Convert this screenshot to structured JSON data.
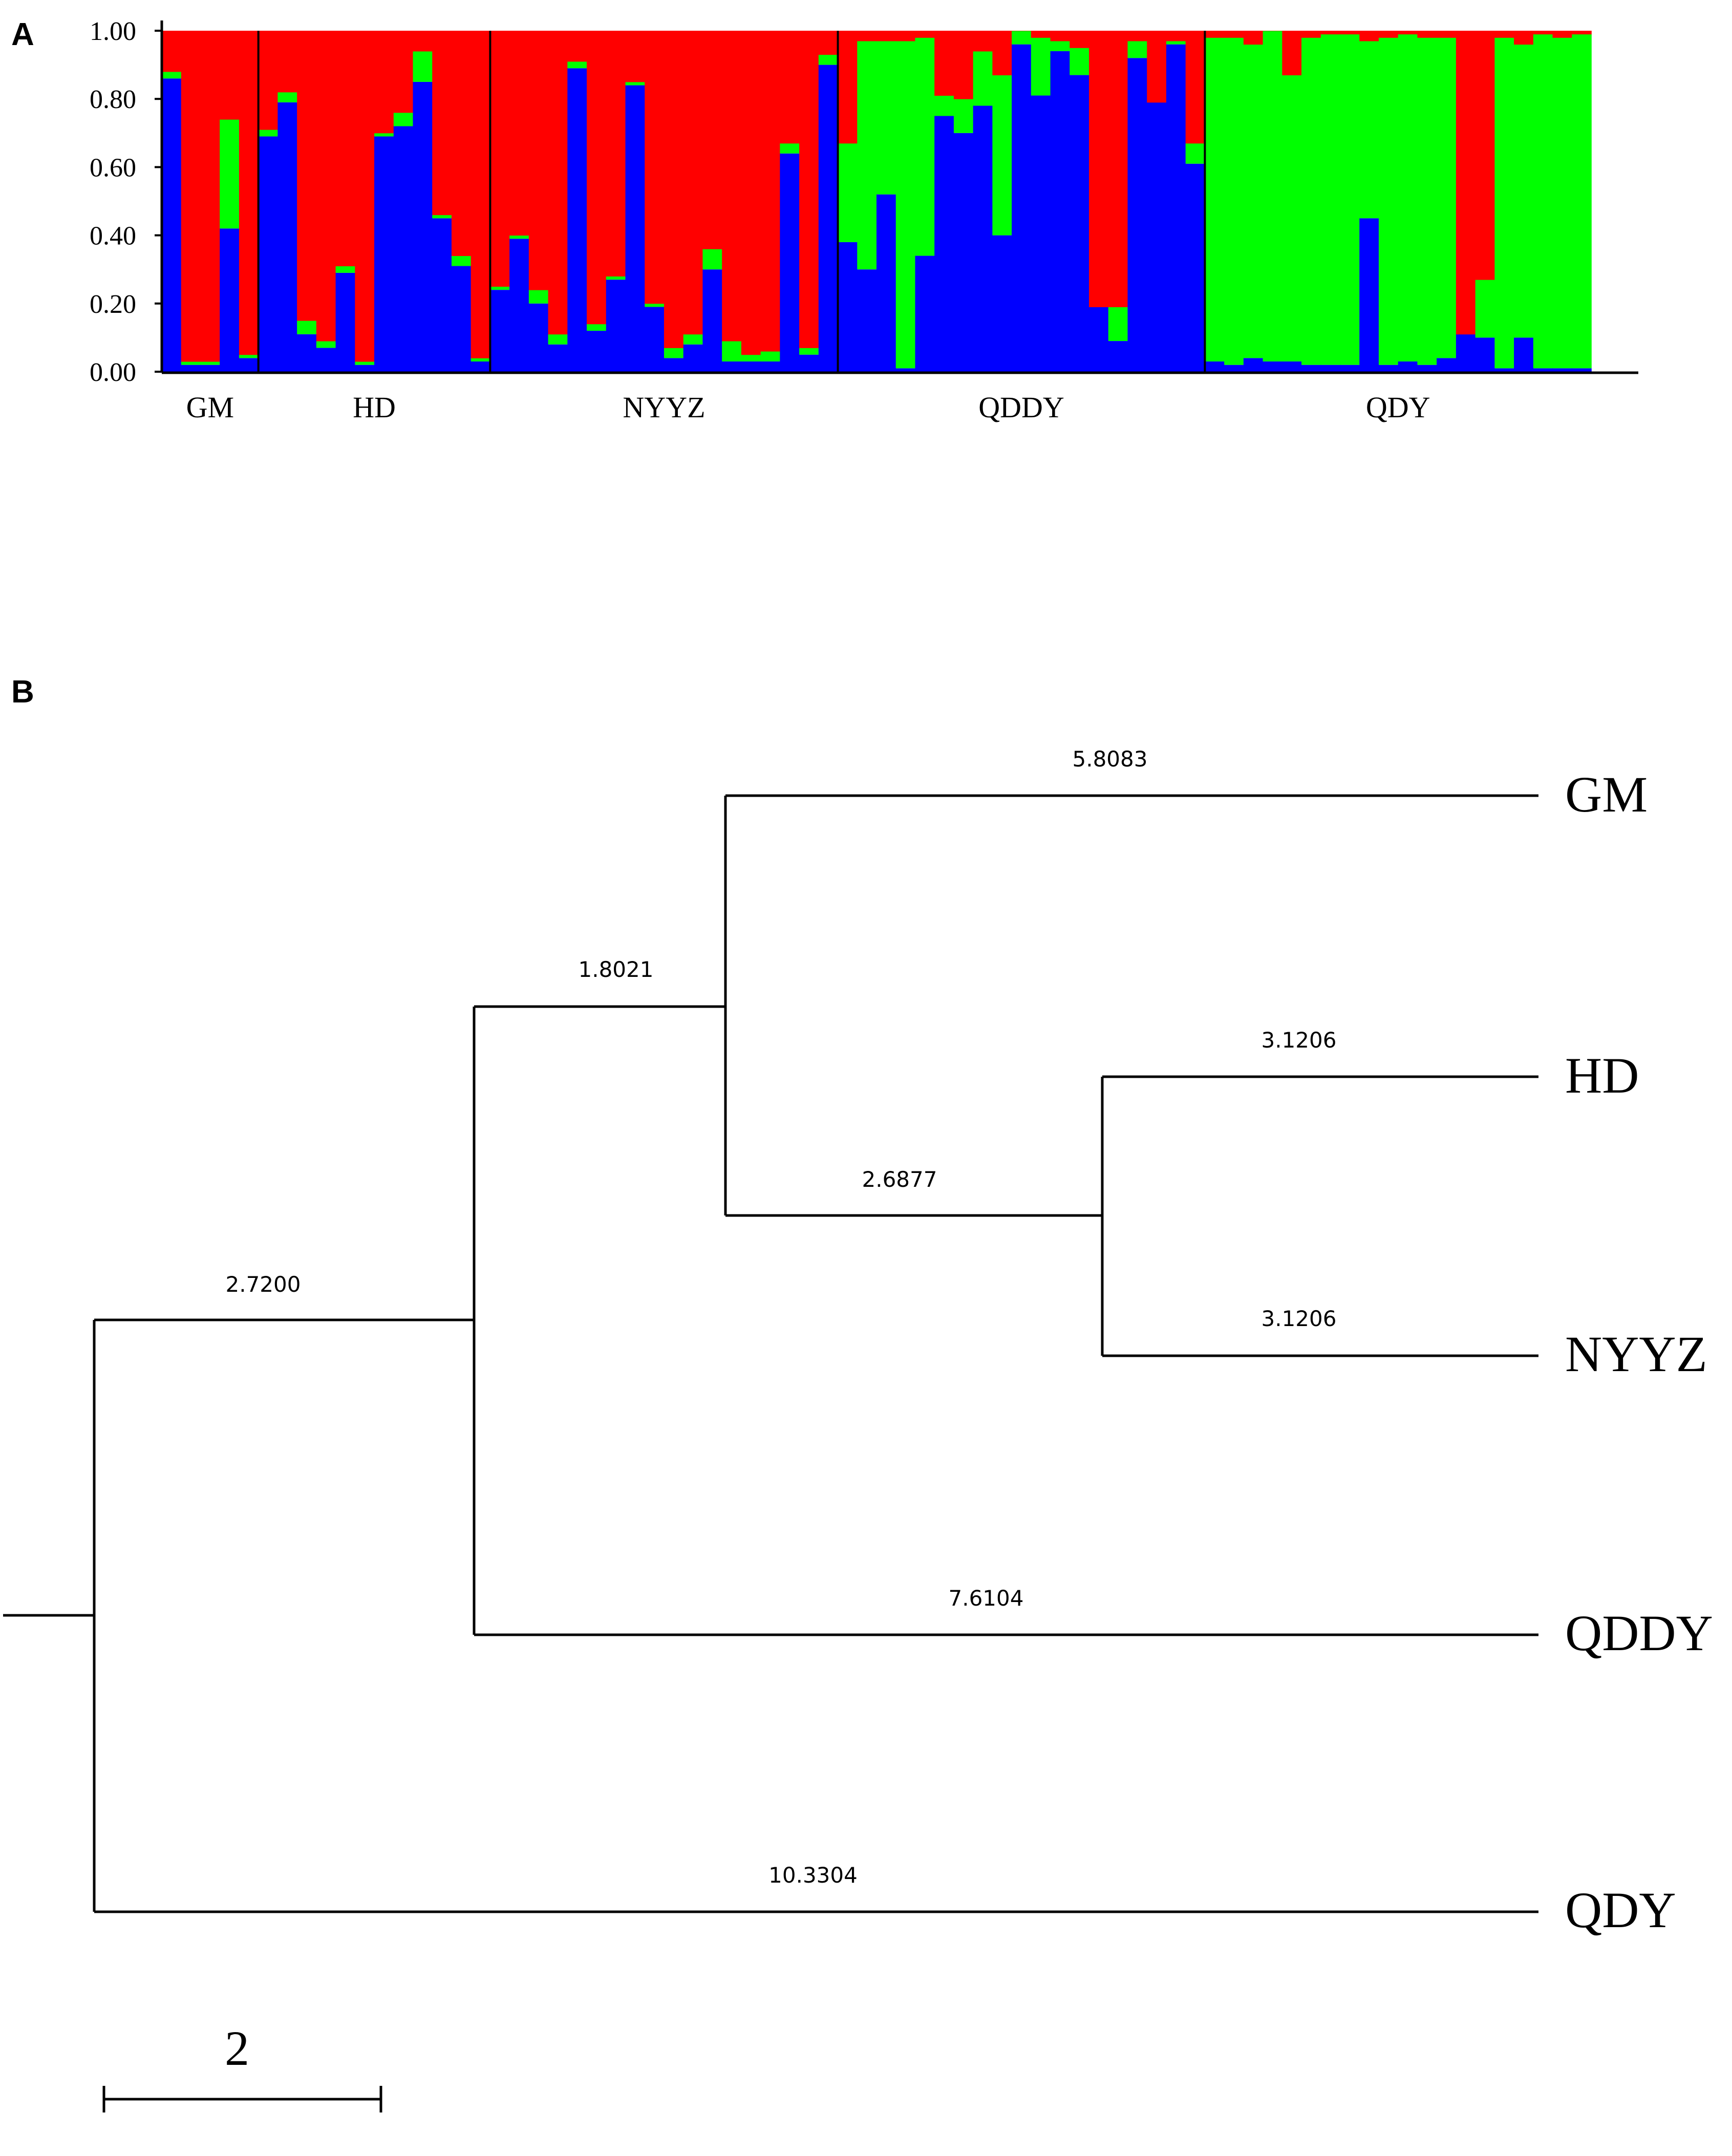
{
  "chart_data": [
    {
      "type": "bar",
      "stacked": true,
      "panel_label": "A",
      "y_ticks": [
        "0.00",
        "0.20",
        "0.40",
        "0.60",
        "0.80",
        "1.00"
      ],
      "ylim": [
        0,
        1
      ],
      "colors": {
        "blue": "#0000ff",
        "green": "#00ff00",
        "red": "#ff0000"
      },
      "groups": [
        {
          "name": "GM",
          "blue": [
            0.86,
            0.02,
            0.02,
            0.42,
            0.04
          ],
          "green": [
            0.02,
            0.01,
            0.01,
            0.32,
            0.01
          ]
        },
        {
          "name": "HD",
          "blue": [
            0.69,
            0.79,
            0.11,
            0.07,
            0.29,
            0.02,
            0.69,
            0.72,
            0.85,
            0.45,
            0.31,
            0.03
          ],
          "green": [
            0.02,
            0.03,
            0.04,
            0.02,
            0.02,
            0.01,
            0.01,
            0.04,
            0.09,
            0.01,
            0.03,
            0.01
          ]
        },
        {
          "name": "NYYZ",
          "blue": [
            0.24,
            0.39,
            0.2,
            0.08,
            0.89,
            0.12,
            0.27,
            0.84,
            0.19,
            0.04,
            0.08,
            0.3,
            0.03,
            0.03,
            0.03,
            0.64,
            0.05,
            0.9
          ],
          "green": [
            0.01,
            0.01,
            0.04,
            0.03,
            0.02,
            0.02,
            0.01,
            0.01,
            0.01,
            0.03,
            0.03,
            0.06,
            0.06,
            0.02,
            0.03,
            0.03,
            0.02,
            0.03
          ]
        },
        {
          "name": "QDDY",
          "blue": [
            0.38,
            0.3,
            0.52,
            0.01,
            0.34,
            0.75,
            0.7,
            0.78,
            0.4,
            0.96,
            0.81,
            0.94,
            0.87,
            0.19,
            0.09,
            0.92,
            0.79,
            0.96,
            0.61
          ],
          "green": [
            0.29,
            0.67,
            0.45,
            0.96,
            0.64,
            0.06,
            0.1,
            0.16,
            0.47,
            0.04,
            0.17,
            0.03,
            0.08,
            0.0,
            0.1,
            0.05,
            0.0,
            0.01,
            0.06
          ]
        },
        {
          "name": "QDY",
          "blue": [
            0.03,
            0.02,
            0.04,
            0.03,
            0.03,
            0.02,
            0.02,
            0.02,
            0.45,
            0.02,
            0.03,
            0.02,
            0.04,
            0.11,
            0.1,
            0.01,
            0.1,
            0.01,
            0.01,
            0.01
          ],
          "green": [
            0.95,
            0.96,
            0.92,
            0.97,
            0.84,
            0.96,
            0.97,
            0.97,
            0.52,
            0.96,
            0.96,
            0.96,
            0.94,
            0.0,
            0.17,
            0.97,
            0.86,
            0.98,
            0.97,
            0.98
          ]
        }
      ]
    },
    {
      "type": "tree",
      "panel_label": "B",
      "scale_bar_label": "2",
      "tips": [
        "GM",
        "HD",
        "NYYZ",
        "QDDY",
        "QDY"
      ],
      "branches": [
        {
          "label": "5.8083",
          "from_node": "n3",
          "to": "GM"
        },
        {
          "label": "1.8021",
          "from_node": "n2",
          "to": "n3"
        },
        {
          "label": "3.1206",
          "from_node": "n4",
          "to": "HD"
        },
        {
          "label": "2.6877",
          "from_node": "n3",
          "to": "n4"
        },
        {
          "label": "2.7200",
          "from_node": "root",
          "to": "n2"
        },
        {
          "label": "3.1206",
          "from_node": "n4",
          "to": "NYYZ"
        },
        {
          "label": "7.6104",
          "from_node": "n2",
          "to": "QDDY"
        },
        {
          "label": "10.3304",
          "from_node": "root",
          "to": "QDY"
        }
      ]
    }
  ]
}
